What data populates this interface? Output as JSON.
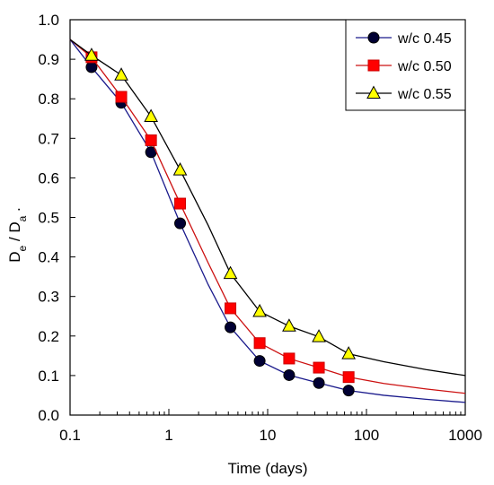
{
  "chart_data": {
    "type": "line",
    "xlabel": "Time (days)",
    "ylabel": "De / Da .",
    "xscale": "log",
    "xlim": [
      0.1,
      1000
    ],
    "ylim": [
      0.0,
      1.0
    ],
    "x_ticks": [
      0.1,
      1,
      10,
      100,
      1000
    ],
    "x_tick_labels": [
      "0.1",
      "1",
      "10",
      "100",
      "1000"
    ],
    "y_ticks": [
      0.0,
      0.1,
      0.2,
      0.3,
      0.4,
      0.5,
      0.6,
      0.7,
      0.8,
      0.9,
      1.0
    ],
    "y_tick_labels": [
      "0.0",
      "0.1",
      "0.2",
      "0.3",
      "0.4",
      "0.5",
      "0.6",
      "0.7",
      "0.8",
      "0.9",
      "1.0"
    ],
    "grid": false,
    "legend_position": "top-right",
    "series": [
      {
        "name": "w/c 0.45",
        "marker": "circle",
        "line_color": "#1a1a8c",
        "marker_fill": "#000033",
        "points": [
          [
            0.165,
            0.88
          ],
          [
            0.33,
            0.79
          ],
          [
            0.66,
            0.665
          ],
          [
            1.3,
            0.485
          ],
          [
            4.2,
            0.222
          ],
          [
            8.3,
            0.137
          ],
          [
            16.5,
            0.101
          ],
          [
            33,
            0.081
          ],
          [
            66,
            0.062
          ]
        ],
        "curve": [
          [
            0.1,
            0.95
          ],
          [
            0.165,
            0.88
          ],
          [
            0.33,
            0.79
          ],
          [
            0.66,
            0.665
          ],
          [
            1.3,
            0.485
          ],
          [
            2.5,
            0.33
          ],
          [
            4.2,
            0.222
          ],
          [
            8.3,
            0.137
          ],
          [
            16.5,
            0.101
          ],
          [
            33,
            0.081
          ],
          [
            66,
            0.062
          ],
          [
            150,
            0.05
          ],
          [
            400,
            0.04
          ],
          [
            1000,
            0.032
          ]
        ]
      },
      {
        "name": "w/c 0.50",
        "marker": "square",
        "line_color": "#cc1111",
        "marker_fill": "#ff0000",
        "points": [
          [
            0.165,
            0.905
          ],
          [
            0.33,
            0.805
          ],
          [
            0.66,
            0.695
          ],
          [
            1.3,
            0.535
          ],
          [
            4.2,
            0.27
          ],
          [
            8.3,
            0.182
          ],
          [
            16.5,
            0.143
          ],
          [
            33,
            0.12
          ],
          [
            66,
            0.096
          ]
        ],
        "curve": [
          [
            0.1,
            0.95
          ],
          [
            0.165,
            0.905
          ],
          [
            0.33,
            0.805
          ],
          [
            0.66,
            0.695
          ],
          [
            1.3,
            0.535
          ],
          [
            2.5,
            0.385
          ],
          [
            4.2,
            0.27
          ],
          [
            8.3,
            0.182
          ],
          [
            16.5,
            0.143
          ],
          [
            33,
            0.12
          ],
          [
            66,
            0.096
          ],
          [
            150,
            0.08
          ],
          [
            400,
            0.066
          ],
          [
            1000,
            0.055
          ]
        ]
      },
      {
        "name": "w/c 0.55",
        "marker": "triangle",
        "line_color": "#000000",
        "marker_fill": "#ffff00",
        "points": [
          [
            0.165,
            0.91
          ],
          [
            0.33,
            0.86
          ],
          [
            0.66,
            0.755
          ],
          [
            1.3,
            0.62
          ],
          [
            4.2,
            0.358
          ],
          [
            8.3,
            0.262
          ],
          [
            16.5,
            0.225
          ],
          [
            33,
            0.198
          ],
          [
            66,
            0.155
          ]
        ],
        "curve": [
          [
            0.1,
            0.95
          ],
          [
            0.165,
            0.91
          ],
          [
            0.33,
            0.86
          ],
          [
            0.66,
            0.755
          ],
          [
            1.3,
            0.62
          ],
          [
            2.5,
            0.48
          ],
          [
            4.2,
            0.358
          ],
          [
            8.3,
            0.262
          ],
          [
            16.5,
            0.225
          ],
          [
            33,
            0.198
          ],
          [
            66,
            0.155
          ],
          [
            150,
            0.135
          ],
          [
            400,
            0.115
          ],
          [
            1000,
            0.1
          ]
        ]
      }
    ]
  }
}
